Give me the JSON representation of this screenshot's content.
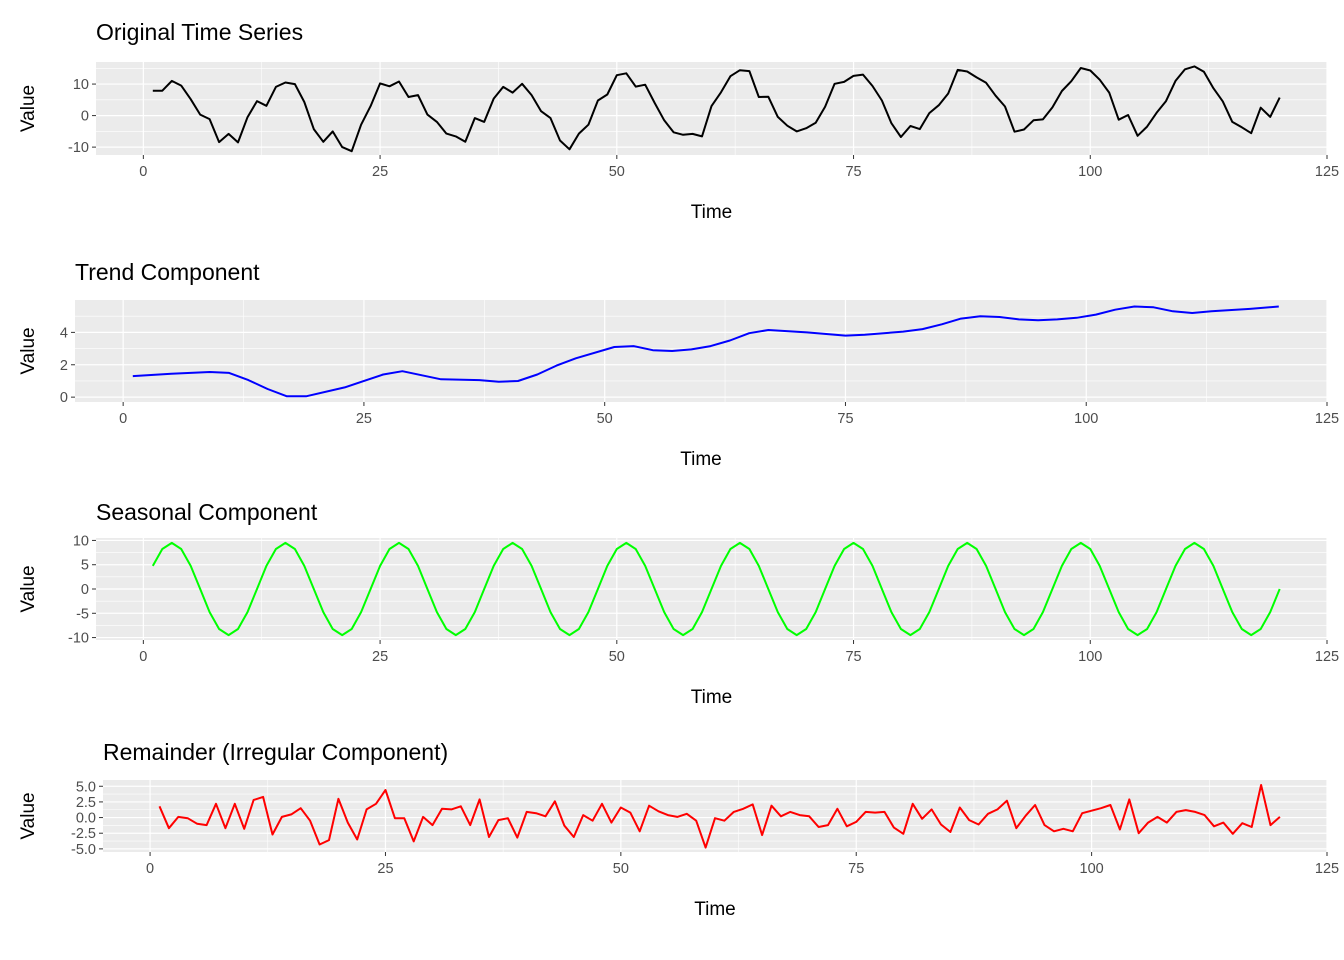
{
  "chart_data": [
    {
      "type": "line",
      "title": "Original Time Series",
      "xlabel": "Time",
      "ylabel": "Value",
      "color": "#000000",
      "xlim": [
        -5,
        125
      ],
      "ylim": [
        -12.5,
        17
      ],
      "xticks": [
        0,
        25,
        50,
        75,
        100,
        125
      ],
      "yticks": [
        -10,
        0,
        10
      ],
      "ytick_labels": [
        "-10",
        "0",
        "10"
      ],
      "grid": true,
      "x_start": 1,
      "y": [
        7.9,
        7.9,
        11.0,
        9.5,
        5.2,
        0.3,
        -1.1,
        -8.4,
        -5.8,
        -8.5,
        -0.5,
        4.6,
        3.1,
        9.1,
        10.5,
        10.0,
        4.3,
        -4.3,
        -8.3,
        -5.0,
        -10.0,
        -11.3,
        -2.9,
        3.0,
        10.2,
        9.3,
        10.8,
        5.9,
        6.5,
        0.3,
        -2.0,
        -5.7,
        -6.6,
        -8.3,
        -0.8,
        -2.0,
        5.4,
        9.1,
        7.3,
        10.1,
        6.5,
        1.4,
        -0.8,
        -7.9,
        -10.7,
        -5.7,
        -2.9,
        4.8,
        6.7,
        12.8,
        13.4,
        9.2,
        9.8,
        4.0,
        -1.5,
        -5.3,
        -6.1,
        -5.8,
        -6.6,
        3.0,
        7.4,
        12.5,
        14.4,
        14.1,
        5.9,
        6.0,
        -0.4,
        -3.2,
        -5.0,
        -4.0,
        -2.3,
        2.8,
        10.1,
        10.7,
        12.6,
        13.0,
        9.4,
        4.8,
        -2.4,
        -6.8,
        -3.3,
        -4.3,
        0.8,
        3.3,
        7.0,
        14.5,
        14.0,
        12.1,
        10.4,
        6.3,
        2.9,
        -5.1,
        -4.4,
        -1.5,
        -1.2,
        2.6,
        7.8,
        10.9,
        15.1,
        14.3,
        11.4,
        7.3,
        -1.3,
        0.2,
        -6.4,
        -3.5,
        0.9,
        4.6,
        11.0,
        14.7,
        15.6,
        13.9,
        8.7,
        4.5,
        -2.0,
        -3.7,
        -5.6,
        2.5,
        -0.4,
        5.7
      ]
    },
    {
      "type": "line",
      "title": "Trend Component",
      "xlabel": "Time",
      "ylabel": "Value",
      "color": "#0000ff",
      "xlim": [
        -5,
        125
      ],
      "ylim": [
        -0.3,
        6.0
      ],
      "xticks": [
        0,
        25,
        50,
        75,
        100,
        125
      ],
      "yticks": [
        0,
        2,
        4
      ],
      "ytick_labels": [
        "0",
        "2",
        "4"
      ],
      "grid": true,
      "x": [
        1,
        5,
        9,
        11,
        13,
        15,
        17,
        19,
        23,
        27,
        29,
        33,
        37,
        39,
        41,
        43,
        45,
        47,
        51,
        53,
        55,
        57,
        59,
        61,
        63,
        65,
        67,
        71,
        75,
        77,
        81,
        83,
        85,
        87,
        89,
        91,
        93,
        95,
        97,
        99,
        101,
        103,
        105,
        107,
        109,
        111,
        113,
        117,
        120
      ],
      "y": [
        1.3,
        1.45,
        1.55,
        1.5,
        1.05,
        0.5,
        0.05,
        0.05,
        0.6,
        1.4,
        1.6,
        1.1,
        1.05,
        0.95,
        1.0,
        1.4,
        1.95,
        2.4,
        3.1,
        3.15,
        2.9,
        2.85,
        2.95,
        3.15,
        3.5,
        3.95,
        4.15,
        4.0,
        3.8,
        3.85,
        4.05,
        4.2,
        4.5,
        4.85,
        5.0,
        4.95,
        4.8,
        4.75,
        4.8,
        4.9,
        5.1,
        5.4,
        5.6,
        5.55,
        5.3,
        5.2,
        5.3,
        5.45,
        5.6
      ]
    },
    {
      "type": "line",
      "title": "Seasonal Component",
      "xlabel": "Time",
      "ylabel": "Value",
      "color": "#00ff00",
      "xlim": [
        -5,
        125
      ],
      "ylim": [
        -10.5,
        10.5
      ],
      "xticks": [
        0,
        25,
        50,
        75,
        100,
        125
      ],
      "yticks": [
        -10,
        -5,
        0,
        5,
        10
      ],
      "ytick_labels": [
        "-10",
        "-5",
        "0",
        "5",
        "10"
      ],
      "grid": true,
      "period": 12,
      "x_start": 1,
      "n": 120,
      "pattern": [
        4.75,
        8.23,
        9.5,
        8.23,
        4.75,
        0,
        -4.75,
        -8.23,
        -9.5,
        -8.23,
        -4.75,
        0
      ]
    },
    {
      "type": "line",
      "title": "Remainder (Irregular Component)",
      "xlabel": "Time",
      "ylabel": "Value",
      "color": "#ff0000",
      "xlim": [
        -5,
        125
      ],
      "ylim": [
        -5.5,
        6.0
      ],
      "xticks": [
        0,
        25,
        50,
        75,
        100,
        125
      ],
      "yticks": [
        -5,
        -2.5,
        0,
        2.5,
        5
      ],
      "ytick_labels": [
        "-5.0",
        "-2.5",
        "0.0",
        "2.5",
        "5.0"
      ],
      "grid": true,
      "x_start": 1,
      "y": [
        1.8,
        -1.7,
        0.1,
        -0.1,
        -1.0,
        -1.2,
        2.2,
        -1.7,
        2.2,
        -1.8,
        2.8,
        3.3,
        -2.7,
        0.1,
        0.5,
        1.5,
        -0.5,
        -4.3,
        -3.6,
        3.0,
        -0.8,
        -3.5,
        1.3,
        2.2,
        4.4,
        -0.1,
        -0.1,
        -3.8,
        0.1,
        -1.2,
        1.4,
        1.3,
        1.8,
        -1.2,
        2.9,
        -3.1,
        -0.4,
        -0.1,
        -3.2,
        0.9,
        0.7,
        0.2,
        2.6,
        -1.3,
        -3.1,
        0.4,
        -0.5,
        2.2,
        -0.8,
        1.6,
        0.8,
        -2.2,
        1.9,
        1.0,
        0.4,
        0.1,
        0.6,
        -0.5,
        -4.8,
        -0.1,
        -0.5,
        0.9,
        1.4,
        2.1,
        -2.8,
        1.9,
        0.2,
        0.9,
        0.4,
        0.2,
        -1.5,
        -1.2,
        1.4,
        -1.4,
        -0.7,
        0.9,
        0.8,
        0.9,
        -1.6,
        -2.6,
        2.2,
        -0.2,
        1.3,
        -1.1,
        -2.3,
        1.6,
        -0.4,
        -1.1,
        0.6,
        1.3,
        2.7,
        -1.7,
        0.3,
        2.0,
        -1.2,
        -2.2,
        -1.8,
        -2.2,
        0.7,
        1.1,
        1.5,
        2.0,
        -1.9,
        2.9,
        -2.5,
        -0.8,
        0.1,
        -0.8,
        0.9,
        1.2,
        0.9,
        0.4,
        -1.4,
        -0.8,
        -2.6,
        -0.9,
        -1.5,
        5.2,
        -1.2,
        0.1
      ]
    }
  ]
}
